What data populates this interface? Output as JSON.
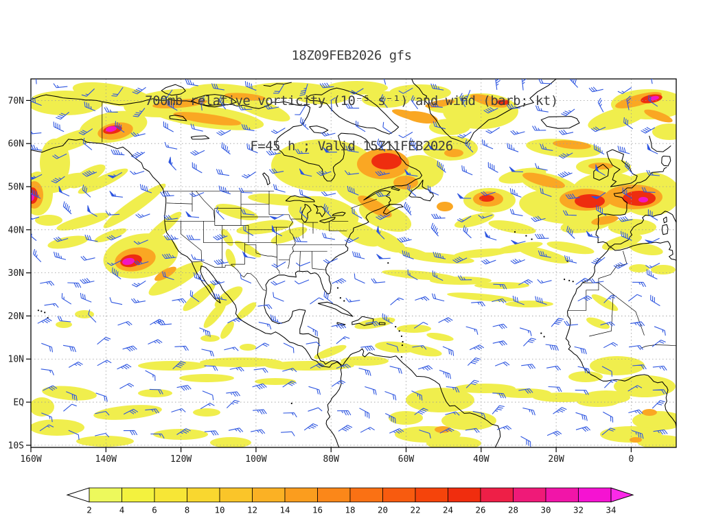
{
  "titles": {
    "line1": "18Z09FEB2026 gfs",
    "line2": "700mb relative vorticity (10⁻⁵ s⁻¹) and wind (barb; kt)",
    "line3": "F=45 h ; Valid 15Z11FEB2026"
  },
  "axes": {
    "lat_labels": [
      "70N",
      "60N",
      "50N",
      "40N",
      "30N",
      "20N",
      "10N",
      "EQ",
      "10S"
    ],
    "lat_values": [
      70,
      60,
      50,
      40,
      30,
      20,
      10,
      0,
      -10
    ],
    "lon_labels": [
      "160W",
      "140W",
      "120W",
      "100W",
      "80W",
      "60W",
      "40W",
      "20W",
      "0"
    ],
    "lon_values": [
      -160,
      -140,
      -120,
      -100,
      -80,
      -60,
      -40,
      -20,
      0
    ]
  },
  "colorbar": {
    "values": [
      2,
      4,
      6,
      8,
      10,
      12,
      14,
      16,
      18,
      20,
      22,
      24,
      26,
      28,
      30,
      32,
      34
    ],
    "segment_colors": [
      "#edf95c",
      "#f3f23e",
      "#f7e636",
      "#f9d72f",
      "#fac529",
      "#fbb124",
      "#fb9d1e",
      "#fb8719",
      "#fa7114",
      "#f85b0f",
      "#f5440b",
      "#f02d0e",
      "#ee1f47",
      "#ef1a78",
      "#f115a8",
      "#f513d2"
    ],
    "left_arrow_color": "#ffffff",
    "right_arrow_color": "#fb2ae8"
  },
  "colors": {
    "wind_barb": "#2d55e0",
    "coastline": "#000000",
    "grid": "#9a9a9a",
    "frame": "#000000",
    "title_text": "#3d3d3d",
    "axis_text": "#1a1a1a",
    "vorticity_yellow": "#f0ee4d",
    "vorticity_orange": "#faa723",
    "vorticity_red": "#ee2d0f",
    "vorticity_magenta": "#f217c2"
  },
  "chart_data": {
    "type": "heatmap",
    "title": "18Z09FEB2026 gfs",
    "subtitle": "700mb relative vorticity (10⁻⁵ s⁻¹) and wind (barb; kt)",
    "annotation": "F=45 h ; Valid 15Z11FEB2026",
    "model": "gfs",
    "initialization": "18Z09FEB2026",
    "forecast_hour": 45,
    "valid_time": "15Z11FEB2026",
    "level": "700mb",
    "field": "relative vorticity",
    "field_units": "10⁻⁵ s⁻¹",
    "wind_units": "kt",
    "projection": "lat-lon, North America and Atlantic sector",
    "lon_range": [
      "160W",
      "12E"
    ],
    "lat_range": [
      "10S",
      "75N"
    ],
    "x_ticks": [
      "160W",
      "140W",
      "120W",
      "100W",
      "80W",
      "60W",
      "40W",
      "20W",
      "0"
    ],
    "y_ticks": [
      "70N",
      "60N",
      "50N",
      "40N",
      "30N",
      "20N",
      "10N",
      "EQ",
      "10S"
    ],
    "shading_levels": [
      2,
      4,
      6,
      8,
      10,
      12,
      14,
      16,
      18,
      20,
      22,
      24,
      26,
      28,
      30,
      32,
      34
    ],
    "shading_colors": [
      "#edf95c",
      "#f3f23e",
      "#f7e636",
      "#f9d72f",
      "#fac529",
      "#fbb124",
      "#fb9d1e",
      "#fb8719",
      "#fa7114",
      "#f85b0f",
      "#f5440b",
      "#f02d0e",
      "#ee1f47",
      "#ef1a78",
      "#f115a8",
      "#f513d2"
    ],
    "legend_position": "bottom",
    "grid": "dotted graticule every 10 deg lat / 20 deg lon",
    "notable_vorticity_maxima": [
      {
        "location": "southeast Alaska coast (~60N 137W)",
        "intensity": "30+"
      },
      {
        "location": "eastern Pacific off California (~32N 132W)",
        "intensity": "30+"
      },
      {
        "location": "left map edge (~49N 160W)",
        "intensity": "30+"
      },
      {
        "location": "central Quebec / Labrador (~56N 67W)",
        "intensity": "22-26"
      },
      {
        "location": "northeast Atlantic (~51N 24W and ~51N 8W)",
        "intensity": "24-32"
      },
      {
        "location": "top right corner / Norwegian Sea (~70N 5E)",
        "intensity": "28-34"
      },
      {
        "location": "mid-Atlantic (~48N 37W)",
        "intensity": "14-22"
      },
      {
        "location": "broad weak bands along 70N, storm tracks and ITCZ (~5-10N)",
        "intensity": "2-8"
      }
    ],
    "wind_field": "blue wind barbs (kt): westerlies in mid-latitudes, easterly trades in tropics"
  }
}
